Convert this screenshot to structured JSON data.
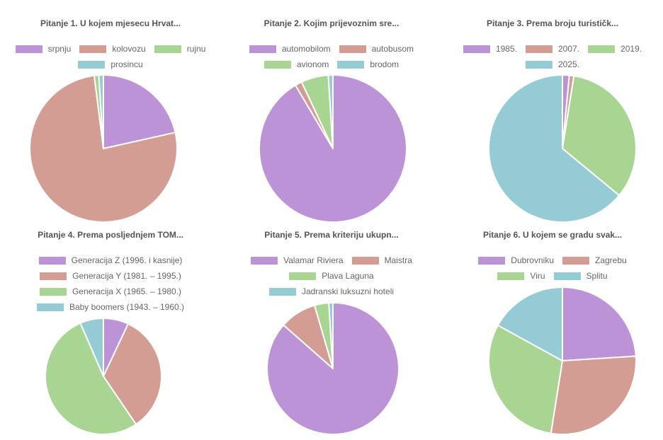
{
  "chart_data": [
    {
      "type": "pie",
      "title": "Pitanje 1. U kojem mjesecu Hrvat...",
      "categories": [
        "srpnju",
        "kolovozu",
        "rujnu",
        "prosincu"
      ],
      "values": [
        21.5,
        76.5,
        1.0,
        1.0
      ]
    },
    {
      "type": "pie",
      "title": "Pitanje 2. Kojim prijevoznim sre...",
      "categories": [
        "automobilom",
        "autobusom",
        "avionom",
        "brodom"
      ],
      "values": [
        91.5,
        1.5,
        6.0,
        1.0
      ]
    },
    {
      "type": "pie",
      "title": "Pitanje 3. Prema broju turističk...",
      "categories": [
        "1985.",
        "2007.",
        "2019.",
        "2025."
      ],
      "values": [
        1.5,
        1.0,
        33.5,
        64.0
      ]
    },
    {
      "type": "pie",
      "title": "Pitanje 4. Prema posljednjem TOM...",
      "categories": [
        "Generacija Z (1996. i kasnije)",
        "Generacija Y (1981. – 1995.)",
        "Generacija X (1965. – 1980.)",
        "Baby boomers (1943. – 1960.)"
      ],
      "values": [
        7.0,
        33.5,
        53.0,
        6.5
      ]
    },
    {
      "type": "pie",
      "title": "Pitanje 5. Prema kriteriju ukupn...",
      "categories": [
        "Valamar Riviera",
        "Maistra",
        "Plava Laguna",
        "Jadranski luksuzni hoteli"
      ],
      "values": [
        86.5,
        9.0,
        3.5,
        1.0
      ]
    },
    {
      "type": "pie",
      "title": "Pitanje 6. U kojem se gradu svak...",
      "categories": [
        "Dubrovniku",
        "Zagrebu",
        "Viru",
        "Splitu"
      ],
      "values": [
        24.0,
        28.5,
        30.5,
        17.0
      ]
    }
  ],
  "colors": [
    "#bb93d6",
    "#d49d93",
    "#a9d592",
    "#94cbd5"
  ]
}
